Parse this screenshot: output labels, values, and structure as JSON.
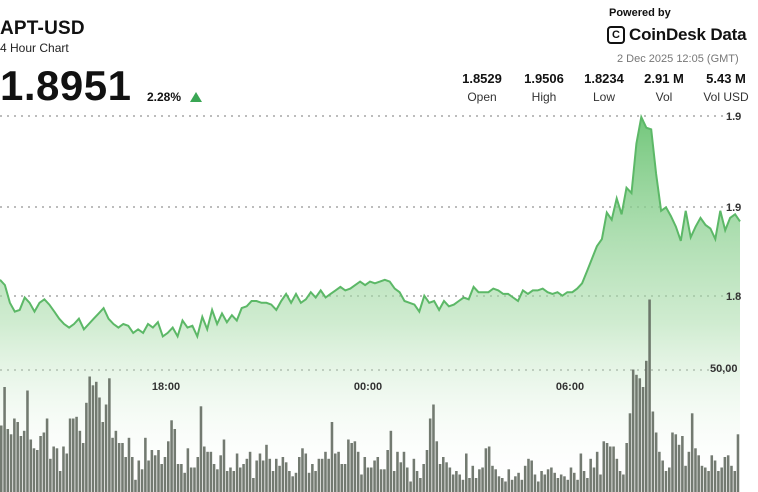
{
  "header": {
    "ticker": "APT-USD",
    "subtitle": "4 Hour Chart",
    "last_price": "1.8951",
    "change_pct": "2.28%",
    "powered_by": "Powered by",
    "brand": "CoinDesk Data",
    "timestamp": "2 Dec 2025 12:05 (GMT)"
  },
  "stats": [
    {
      "value": "1.8529",
      "label": "Open"
    },
    {
      "value": "1.9506",
      "label": "High"
    },
    {
      "value": "1.8234",
      "label": "Low"
    },
    {
      "value": "2.91 M",
      "label": "Vol"
    },
    {
      "value": "5.43 M",
      "label": "Vol USD"
    }
  ],
  "colors": {
    "line": "#5cb867",
    "area_top": "#6cc475",
    "volume_bar": "#5a6358",
    "volume_bar_highlight": "#6db86a",
    "up_arrow": "#3aa654"
  },
  "chart_data": {
    "type": "area",
    "price_axis_ticks": [
      "1.9",
      "1.9",
      "1.8"
    ],
    "volume_axis_ticks": [
      "50,00"
    ],
    "time_axis_ticks": [
      "18:00",
      "00:00",
      "06:00"
    ],
    "grid": true,
    "price_range": [
      1.8234,
      1.9506
    ],
    "price": [
      1.858,
      1.855,
      1.845,
      1.84,
      1.841,
      1.848,
      1.845,
      1.84,
      1.845,
      1.847,
      1.844,
      1.84,
      1.836,
      1.833,
      1.831,
      1.833,
      1.836,
      1.83,
      1.833,
      1.836,
      1.839,
      1.842,
      1.836,
      1.833,
      1.831,
      1.833,
      1.832,
      1.828,
      1.83,
      1.828,
      1.833,
      1.831,
      1.834,
      1.826,
      1.828,
      1.831,
      1.826,
      1.835,
      1.831,
      1.832,
      1.826,
      1.837,
      1.83,
      1.841,
      1.833,
      1.839,
      1.834,
      1.838,
      1.835,
      1.842,
      1.843,
      1.846,
      1.846,
      1.845,
      1.845,
      1.844,
      1.841,
      1.846,
      1.85,
      1.845,
      1.85,
      1.845,
      1.847,
      1.851,
      1.848,
      1.852,
      1.848,
      1.85,
      1.852,
      1.854,
      1.852,
      1.853,
      1.855,
      1.857,
      1.855,
      1.857,
      1.856,
      1.857,
      1.858,
      1.857,
      1.853,
      1.851,
      1.846,
      1.845,
      1.844,
      1.84,
      1.849,
      1.845,
      1.846,
      1.841,
      1.846,
      1.843,
      1.844,
      1.846,
      1.848,
      1.847,
      1.854,
      1.851,
      1.851,
      1.851,
      1.853,
      1.852,
      1.85,
      1.85,
      1.848,
      1.846,
      1.852,
      1.85,
      1.852,
      1.852,
      1.853,
      1.851,
      1.85,
      1.851,
      1.849,
      1.851,
      1.851,
      1.853,
      1.856,
      1.863,
      1.87,
      1.877,
      1.881,
      1.896,
      1.892,
      1.904,
      1.895,
      1.91,
      1.907,
      1.935,
      1.95,
      1.944,
      1.943,
      1.918,
      1.897,
      1.899,
      1.894,
      1.888,
      1.88,
      1.897,
      1.882,
      1.888,
      1.893,
      1.889,
      1.887,
      1.881,
      1.897,
      1.886,
      1.893,
      1.895,
      1.891
    ],
    "volume": [
      3.8,
      6.0,
      3.6,
      3.3,
      4.2,
      4.0,
      3.2,
      3.5,
      5.8,
      3.0,
      2.5,
      2.4,
      3.2,
      3.4,
      4.2,
      1.9,
      2.6,
      2.5,
      1.2,
      2.6,
      2.2,
      4.2,
      4.2,
      4.3,
      3.5,
      2.8,
      5.1,
      6.6,
      6.1,
      6.3,
      5.4,
      4.0,
      5.0,
      6.5,
      3.1,
      3.5,
      2.8,
      2.8,
      2.0,
      3.1,
      2.0,
      0.7,
      1.8,
      1.3,
      3.1,
      1.8,
      2.4,
      2.1,
      2.4,
      1.6,
      2.0,
      2.9,
      4.1,
      3.6,
      1.6,
      1.6,
      1.1,
      2.5,
      1.4,
      1.4,
      2.0,
      4.9,
      2.6,
      2.3,
      2.3,
      1.6,
      1.3,
      2.1,
      3.0,
      1.2,
      1.4,
      1.2,
      2.2,
      1.4,
      1.6,
      1.9,
      2.3,
      0.8,
      1.8,
      2.2,
      1.8,
      2.7,
      1.9,
      1.2,
      1.9,
      1.5,
      2.0,
      1.7,
      1.2,
      0.9,
      1.1,
      2.0,
      2.5,
      2.2,
      1.1,
      1.6,
      1.2,
      1.9,
      1.9,
      2.3,
      1.9,
      4.0,
      2.2,
      2.3,
      1.6,
      1.6,
      3.0,
      2.8,
      2.9,
      2.3,
      1.0,
      2.0,
      1.4,
      1.4,
      1.8,
      2.0,
      1.3,
      1.3,
      2.4,
      3.5,
      1.2,
      2.3,
      1.7,
      2.3,
      1.4,
      0.6,
      1.9,
      1.2,
      0.8,
      1.6,
      2.4,
      4.2,
      5.0,
      2.9,
      1.6,
      2.0,
      1.7,
      1.4,
      1.0,
      1.2,
      1.0,
      0.7,
      2.2,
      0.8,
      1.5,
      0.8,
      1.3,
      1.4,
      2.5,
      2.6,
      1.5,
      1.3,
      0.9,
      0.8,
      0.6,
      1.3,
      0.7,
      0.9,
      1.1,
      0.7,
      1.5,
      1.9,
      1.8,
      1.0,
      0.6,
      1.2,
      1.0,
      1.3,
      1.4,
      1.1,
      0.8,
      1.0,
      0.9,
      0.7,
      1.4,
      1.1,
      0.7,
      2.2,
      1.2,
      0.8,
      1.9,
      1.4,
      2.3,
      1.0,
      2.9,
      2.8,
      2.6,
      2.6,
      1.9,
      1.2,
      1.0,
      2.8,
      4.5,
      7.0,
      6.7,
      6.5,
      6.0,
      7.5,
      11.0,
      4.6,
      3.4,
      2.3,
      1.8,
      1.2,
      1.4,
      3.4,
      3.3,
      2.7,
      3.2,
      1.5,
      2.3,
      4.5,
      2.5,
      2.1,
      1.5,
      1.4,
      1.2,
      2.1,
      1.8,
      1.2,
      1.4,
      2.0,
      2.1,
      1.5,
      1.2,
      3.3
    ]
  }
}
